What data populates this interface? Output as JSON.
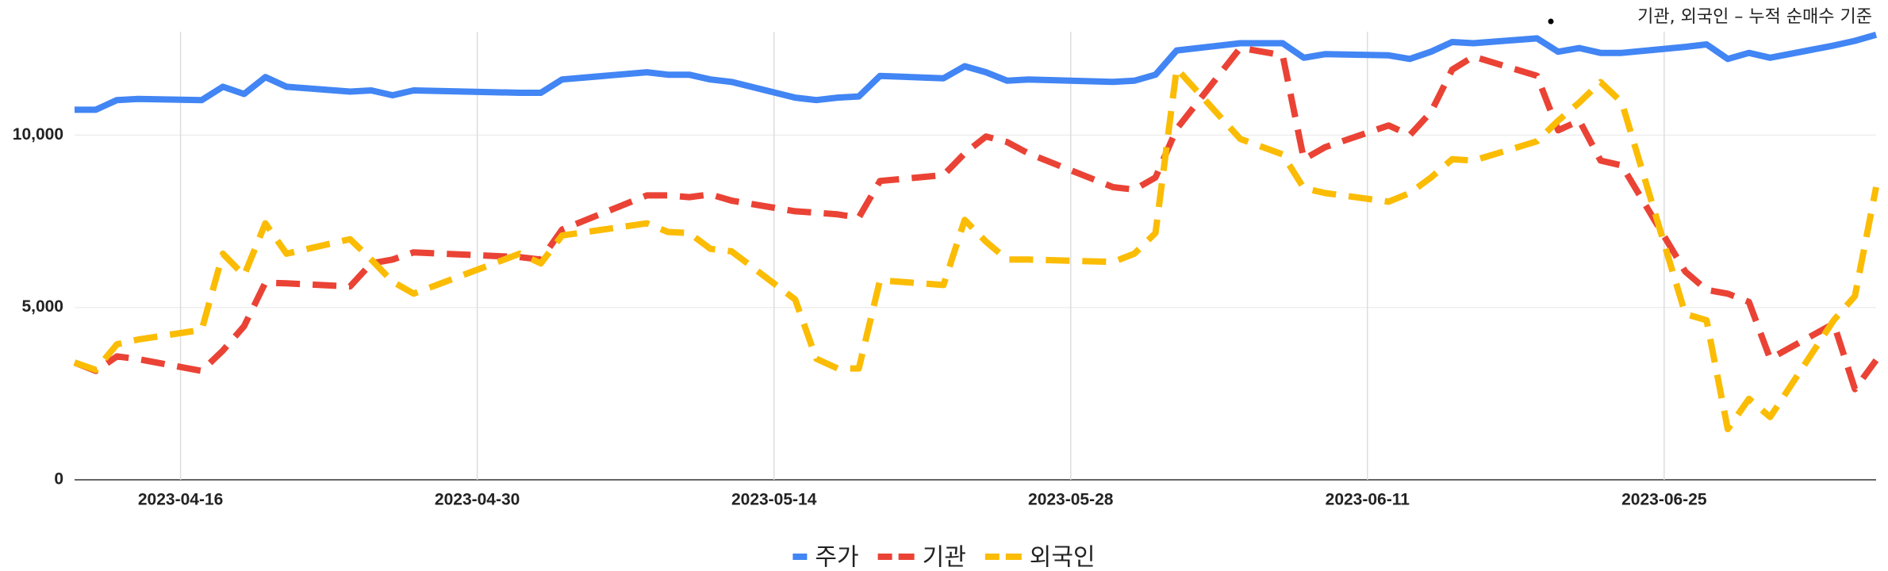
{
  "chart_data": {
    "type": "line",
    "annotation": "기관, 외국인 – 누적 순매수 기준",
    "x": [
      "2023-04-11",
      "2023-04-12",
      "2023-04-13",
      "2023-04-14",
      "2023-04-17",
      "2023-04-18",
      "2023-04-19",
      "2023-04-20",
      "2023-04-21",
      "2023-04-24",
      "2023-04-25",
      "2023-04-26",
      "2023-04-27",
      "2023-05-02",
      "2023-05-03",
      "2023-05-04",
      "2023-05-08",
      "2023-05-09",
      "2023-05-10",
      "2023-05-11",
      "2023-05-12",
      "2023-05-15",
      "2023-05-16",
      "2023-05-17",
      "2023-05-18",
      "2023-05-19",
      "2023-05-22",
      "2023-05-23",
      "2023-05-24",
      "2023-05-25",
      "2023-05-26",
      "2023-05-30",
      "2023-05-31",
      "2023-06-01",
      "2023-06-02",
      "2023-06-05",
      "2023-06-07",
      "2023-06-08",
      "2023-06-09",
      "2023-06-12",
      "2023-06-13",
      "2023-06-14",
      "2023-06-15",
      "2023-06-16",
      "2023-06-19",
      "2023-06-20",
      "2023-06-21",
      "2023-06-22",
      "2023-06-23",
      "2023-06-26",
      "2023-06-27",
      "2023-06-28",
      "2023-06-29",
      "2023-06-30",
      "2023-07-03",
      "2023-07-04",
      "2023-07-05"
    ],
    "series": [
      {
        "name": "주가",
        "color": "#4285f4",
        "dashed": false,
        "values": [
          10737,
          10737,
          11017,
          11052,
          11017,
          11403,
          11193,
          11684,
          11403,
          11263,
          11298,
          11157,
          11298,
          11228,
          11228,
          11614,
          11824,
          11754,
          11754,
          11614,
          11544,
          11088,
          11017,
          11088,
          11123,
          11719,
          11649,
          12000,
          11824,
          11579,
          11614,
          11544,
          11579,
          11754,
          12456,
          12666,
          12666,
          12245,
          12350,
          12315,
          12210,
          12421,
          12701,
          12666,
          12807,
          12421,
          12526,
          12386,
          12386,
          12560,
          12631,
          12210,
          12386,
          12245,
          12600,
          12736,
          12912
        ]
      },
      {
        "name": "기관",
        "color": "#ea4335",
        "dashed": true,
        "values": [
          3400,
          3160,
          3580,
          3500,
          3160,
          3750,
          4460,
          5720,
          5700,
          5610,
          6280,
          6390,
          6600,
          6460,
          6390,
          7260,
          8250,
          8250,
          8200,
          8280,
          8100,
          7790,
          7750,
          7700,
          7610,
          8670,
          8840,
          9470,
          9960,
          9800,
          9470,
          8490,
          8420,
          8770,
          10180,
          12530,
          12320,
          9300,
          9650,
          10280,
          10000,
          10670,
          11900,
          12280,
          11720,
          10140,
          10420,
          9260,
          9120,
          6040,
          5510,
          5400,
          5160,
          3510,
          4530,
          2630,
          3470
        ]
      },
      {
        "name": "외국인",
        "color": "#fbbc04",
        "dashed": true,
        "values": [
          3400,
          3190,
          3930,
          4070,
          4350,
          6560,
          5930,
          7440,
          6560,
          6980,
          6390,
          5750,
          5400,
          6560,
          6280,
          7090,
          7440,
          7190,
          7160,
          6700,
          6630,
          5230,
          3510,
          3230,
          3230,
          5790,
          5650,
          7540,
          6910,
          6390,
          6390,
          6320,
          6560,
          7160,
          11930,
          9890,
          9440,
          8460,
          8320,
          8070,
          8320,
          8770,
          9300,
          9260,
          9820,
          10420,
          10950,
          11540,
          10950,
          4810,
          4630,
          1470,
          2350,
          1820,
          4630,
          5330,
          8490
        ]
      }
    ],
    "xlim": [
      "2023-04-11",
      "2023-07-05"
    ],
    "xticks": [
      "2023-04-16",
      "2023-04-30",
      "2023-05-14",
      "2023-05-28",
      "2023-06-11",
      "2023-06-25"
    ],
    "ylim": [
      0,
      13000
    ],
    "yticks": [
      0,
      {
        "value": 5000,
        "label": "5,000"
      },
      {
        "value": 10000,
        "label": "10,000"
      }
    ],
    "grid": true,
    "legend": "bottom"
  }
}
